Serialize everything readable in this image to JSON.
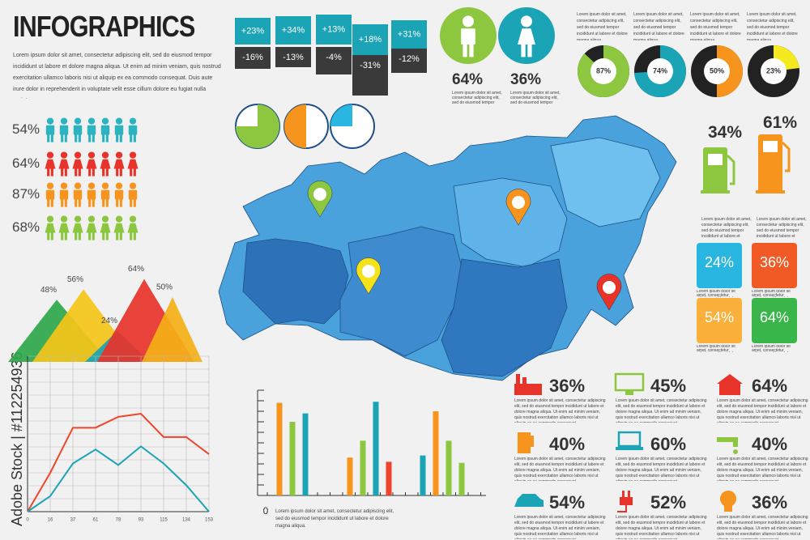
{
  "header": {
    "title": "INFOGRAPHICS",
    "text": "Lorem ipsum dolor sit amet, consectetur adipiscing elit, sed do eiusmod tempor incididunt ut labore et dolore magna aliqua. Ut enim ad minim veniam, quis nostrud exercitation ullamco laboris nisi ut aliquip ex ea commodo consequat. Duis aute irure dolor in reprehenderit in voluptate velit esse cillum dolore eu fugiat nulla pariatur."
  },
  "watermark": "Adobe Stock | #112254936",
  "change_boxes": [
    {
      "up": "+23%",
      "down": "-16%"
    },
    {
      "up": "+34%",
      "down": "-13%"
    },
    {
      "up": "+13%",
      "down": "-4%"
    },
    {
      "up": "+18%",
      "down": "-31%"
    },
    {
      "up": "+31%",
      "down": "-12%"
    }
  ],
  "gender": [
    {
      "label": "64%",
      "text": "Lorem ipsum dolor sit amet, consectetur adipiscing elit, sed do eiusmod tempor incididunt ut labore et dolore magna aliqua."
    },
    {
      "label": "36%",
      "text": "Lorem ipsum dolor sit amet, consectetur adipiscing elit, sed do eiusmod tempor incididunt ut labore et dolore magna aliqua."
    }
  ],
  "donuts": [
    {
      "value": 87,
      "label": "87%",
      "color": "#8dc63f",
      "text": "Lorem ipsum dolor sit amet, consectetur adipiscing elit, sed do eiusmod tempor incididunt ut labore et dolore magna aliqua."
    },
    {
      "value": 74,
      "label": "74%",
      "color": "#1ba3b6",
      "text": "Lorem ipsum dolor sit amet, consectetur adipiscing elit, sed do eiusmod tempor incididunt ut labore et dolore magna aliqua."
    },
    {
      "value": 50,
      "label": "50%",
      "color": "#f7941d",
      "text": "Lorem ipsum dolor sit amet, consectetur adipiscing elit, sed do eiusmod tempor incididunt ut labore et dolore magna aliqua."
    },
    {
      "value": 23,
      "label": "23%",
      "color": "#f4ea1e",
      "text": "Lorem ipsum dolor sit amet, consectetur adipiscing elit, sed do eiusmod tempor incididunt ut labore et dolore magna aliqua."
    }
  ],
  "people": [
    {
      "label": "54%",
      "color": "#2bb3c0"
    },
    {
      "label": "64%",
      "color": "#e8332a"
    },
    {
      "label": "87%",
      "color": "#f7941d"
    },
    {
      "label": "68%",
      "color": "#8cc63f"
    }
  ],
  "fuel": [
    {
      "label": "34%",
      "color": "#8dc63f",
      "text": "Lorem ipsum dolor sit amet, consectetur adipiscing elit, sed do eiusmod tempor incididunt ut labore et dolore magna aliqua."
    },
    {
      "label": "61%",
      "color": "#f7941d",
      "text": "Lorem ipsum dolor sit amet, consectetur adipiscing elit, sed do eiusmod tempor incididunt ut labore et dolore magna aliqua."
    }
  ],
  "tiles": [
    {
      "label": "24%",
      "color": "#29b6e0",
      "text": "Lorem ipsum dolor sit amet, consectetur adipiscing elit, sed do eiusmod tempor."
    },
    {
      "label": "36%",
      "color": "#f15a24",
      "text": "Lorem ipsum dolor sit amet, consectetur adipiscing elit, sed do eiusmod tempor."
    },
    {
      "label": "54%",
      "color": "#fbb03b",
      "text": "Lorem ipsum dolor sit amet, consectetur adipiscing elit, sed do eiusmod tempor."
    },
    {
      "label": "64%",
      "color": "#39b54a",
      "text": "Lorem ipsum dolor sit amet, consectetur adipiscing elit, sed do eiusmod tempor."
    }
  ],
  "mountains": [
    {
      "value": 48,
      "label": "48%",
      "color": "#2ea84a"
    },
    {
      "value": 56,
      "label": "56%",
      "color": "#f5c518"
    },
    {
      "value": 24,
      "label": "24%",
      "color": "#1ba3b6"
    },
    {
      "value": 64,
      "label": "64%",
      "color": "#e8332a"
    },
    {
      "value": 50,
      "label": "50%",
      "color": "#f5b018"
    }
  ],
  "line_chart": {
    "categories": [
      0,
      16,
      37,
      61,
      78,
      93,
      115,
      134,
      153
    ],
    "ylim": [
      0,
      100
    ],
    "grid": true,
    "series": [
      {
        "color": "#f0442c",
        "values": [
          0,
          25,
          54,
          54,
          61,
          63,
          48,
          48,
          37
        ]
      },
      {
        "color": "#1ba3b6",
        "values": [
          0,
          10,
          31,
          40,
          30,
          42,
          31,
          17,
          0
        ]
      }
    ]
  },
  "bar_chart": {
    "ylim": [
      0,
      10
    ],
    "yticks": [
      0
    ],
    "bars": [
      {
        "value": 8.8,
        "color": "#f7941d"
      },
      {
        "value": 7,
        "color": "#8dc63f"
      },
      {
        "value": 7.8,
        "color": "#1ba3b6"
      },
      {
        "value": 3.6,
        "color": "#f7941d"
      },
      {
        "value": 5.2,
        "color": "#8dc63f"
      },
      {
        "value": 8.9,
        "color": "#1ba3b6"
      },
      {
        "value": 3.2,
        "color": "#f0442c"
      },
      {
        "value": 3.8,
        "color": "#1ba3b6"
      },
      {
        "value": 8,
        "color": "#f7941d"
      },
      {
        "value": 5.2,
        "color": "#8dc63f"
      },
      {
        "value": 3.1,
        "color": "#8dc63f"
      }
    ],
    "text": "Lorem ipsum dolor sit amet, consectetur adipiscing elit, sed do eiusmod tempor incididunt ut labore et dolore magna aliqua."
  },
  "stats": [
    {
      "label": "36%",
      "text": "Lorem ipsum dolor sit amet, consectetur adipiscing elit, sed do eiusmod tempor incididunt ut labore et dolore magna aliqua. Ut enim ad minim veniam, quis nostrud exercitation ullamco laboris nisi ut aliquip ex ea commodo consequat."
    },
    {
      "label": "45%",
      "text": "Lorem ipsum dolor sit amet, consectetur adipiscing elit, sed do eiusmod tempor incididunt ut labore et dolore magna aliqua. Ut enim ad minim veniam, quis nostrud exercitation ullamco laboris nisi ut aliquip ex ea commodo consequat."
    },
    {
      "label": "64%",
      "text": "Lorem ipsum dolor sit amet, consectetur adipiscing elit, sed do eiusmod tempor incididunt ut labore et dolore magna aliqua. Ut enim ad minim veniam, quis nostrud exercitation ullamco laboris nisi ut aliquip ex ea commodo consequat."
    },
    {
      "label": "40%",
      "text": "Lorem ipsum dolor sit amet, consectetur adipiscing elit, sed do eiusmod tempor incididunt ut labore et dolore magna aliqua. Ut enim ad minim veniam, quis nostrud exercitation ullamco laboris nisi ut aliquip ex ea commodo consequat."
    },
    {
      "label": "60%",
      "text": "Lorem ipsum dolor sit amet, consectetur adipiscing elit, sed do eiusmod tempor incididunt ut labore et dolore magna aliqua. Ut enim ad minim veniam, quis nostrud exercitation ullamco laboris nisi ut aliquip ex ea commodo consequat."
    },
    {
      "label": "40%",
      "text": "Lorem ipsum dolor sit amet, consectetur adipiscing elit, sed do eiusmod tempor incididunt ut labore et dolore magna aliqua. Ut enim ad minim veniam, quis nostrud exercitation ullamco laboris nisi ut aliquip ex ea commodo consequat."
    },
    {
      "label": "54%",
      "text": "Lorem ipsum dolor sit amet, consectetur adipiscing elit, sed do eiusmod tempor incididunt ut labore et dolore magna aliqua. Ut enim ad minim veniam, quis nostrud exercitation ullamco laboris nisi ut aliquip ex ea commodo consequat."
    },
    {
      "label": "52%",
      "text": "Lorem ipsum dolor sit amet, consectetur adipiscing elit, sed do eiusmod tempor incididunt ut labore et dolore magna aliqua. Ut enim ad minim veniam, quis nostrud exercitation ullamco laboris nisi ut aliquip ex ea commodo consequat."
    },
    {
      "label": "36%",
      "text": "Lorem ipsum dolor sit amet, consectetur adipiscing elit, sed do eiusmod tempor incididunt ut labore et dolore magna aliqua. Ut enim ad minim veniam, quis nostrud exercitation ullamco laboris nisi ut aliquip ex ea commodo consequat."
    }
  ]
}
